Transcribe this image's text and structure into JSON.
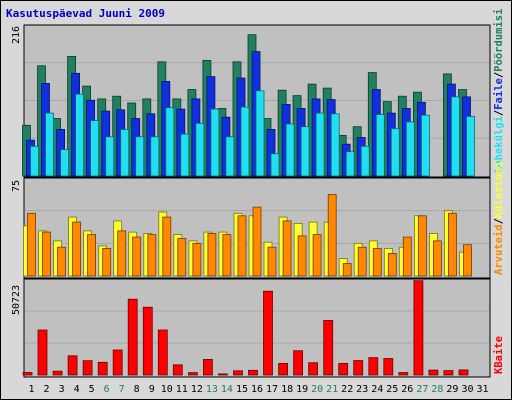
{
  "title": "Kasutuspäevad Juuni 2009",
  "colors": {
    "weekday_label": "#000000",
    "weekend_label": "#208060",
    "hits": "#208060",
    "files": "#1030e0",
    "pages": "#20e0f0",
    "visits": "#ff8800",
    "sites": "#ffff30",
    "kbytes": "#ff0000"
  },
  "chart_data": [
    {
      "type": "bar",
      "panel": "top",
      "ymax_label": "216",
      "ylim": [
        0,
        216
      ],
      "categories": [
        "1",
        "2",
        "3",
        "4",
        "5",
        "6",
        "7",
        "8",
        "9",
        "10",
        "11",
        "12",
        "13",
        "14",
        "15",
        "16",
        "17",
        "18",
        "19",
        "20",
        "21",
        "22",
        "23",
        "24",
        "25",
        "26",
        "27",
        "28",
        "29",
        "30",
        "31"
      ],
      "weekend_days": [
        6,
        7,
        13,
        14,
        20,
        21,
        27,
        28
      ],
      "legend": [
        {
          "label": "Pöördumisi",
          "color": "#208060"
        },
        {
          "label": "Faile",
          "color": "#1030e0"
        },
        {
          "label": "Lehekülgi",
          "color": "#20e0f0"
        }
      ],
      "series": [
        {
          "name": "Pöördumisi",
          "color": "#208060",
          "values": [
            75,
            163,
            85,
            177,
            133,
            114,
            118,
            108,
            114,
            169,
            114,
            128,
            171,
            100,
            169,
            209,
            85,
            127,
            119,
            136,
            130,
            60,
            73,
            153,
            110,
            118,
            124,
            0,
            151,
            128,
            0
          ]
        },
        {
          "name": "Faile",
          "color": "#1030e0",
          "values": [
            53,
            137,
            69,
            152,
            112,
            96,
            98,
            85,
            92,
            140,
            99,
            114,
            147,
            87,
            145,
            184,
            69,
            106,
            100,
            114,
            113,
            47,
            57,
            128,
            93,
            100,
            109,
            0,
            136,
            117,
            0
          ]
        },
        {
          "name": "Lehekülgi",
          "color": "#20e0f0",
          "values": [
            44,
            93,
            39,
            121,
            82,
            58,
            69,
            58,
            58,
            101,
            62,
            78,
            99,
            58,
            102,
            126,
            33,
            77,
            73,
            93,
            92,
            36,
            44,
            91,
            70,
            80,
            90,
            0,
            117,
            88,
            0
          ]
        }
      ]
    },
    {
      "type": "bar",
      "panel": "middle",
      "ymax_label": "75",
      "ylim": [
        0,
        75
      ],
      "categories": [
        "1",
        "2",
        "3",
        "4",
        "5",
        "6",
        "7",
        "8",
        "9",
        "10",
        "11",
        "12",
        "13",
        "14",
        "15",
        "16",
        "17",
        "18",
        "19",
        "20",
        "21",
        "22",
        "23",
        "24",
        "25",
        "26",
        "27",
        "28",
        "29",
        "30",
        "31"
      ],
      "legend": [
        {
          "label": "Külastusi",
          "color": "#ffff30"
        },
        {
          "label": "Arvuteid",
          "color": "#ff8800"
        }
      ],
      "series": [
        {
          "name": "Külastusi",
          "color": "#ffff30",
          "values": [
            40,
            36,
            28,
            47,
            36,
            24,
            44,
            35,
            34,
            51,
            33,
            28,
            35,
            35,
            50,
            48,
            27,
            47,
            42,
            43,
            43,
            14,
            26,
            28,
            22,
            23,
            48,
            34,
            52,
            19,
            0
          ]
        },
        {
          "name": "Arvuteid",
          "color": "#ff8800",
          "values": [
            50,
            35,
            23,
            43,
            33,
            22,
            36,
            31,
            33,
            47,
            30,
            26,
            34,
            33,
            48,
            55,
            23,
            44,
            32,
            33,
            65,
            10,
            23,
            22,
            18,
            31,
            48,
            28,
            50,
            25,
            0
          ]
        }
      ]
    },
    {
      "type": "bar",
      "panel": "bottom",
      "ymax_label": "50723",
      "ylim": [
        0,
        50723
      ],
      "categories": [
        "1",
        "2",
        "3",
        "4",
        "5",
        "6",
        "7",
        "8",
        "9",
        "10",
        "11",
        "12",
        "13",
        "14",
        "15",
        "16",
        "17",
        "18",
        "19",
        "20",
        "21",
        "22",
        "23",
        "24",
        "25",
        "26",
        "27",
        "28",
        "29",
        "30",
        "31"
      ],
      "legend": [
        {
          "label": "KBaite",
          "color": "#ff0000"
        }
      ],
      "series": [
        {
          "name": "KBaite",
          "color": "#ff0000",
          "values": [
            1400,
            24800,
            2100,
            10600,
            7900,
            7000,
            13800,
            41800,
            37400,
            24800,
            5600,
            1300,
            8600,
            600,
            2300,
            2600,
            46200,
            6400,
            13400,
            6800,
            30100,
            6400,
            8000,
            9600,
            9100,
            1400,
            52000,
            2700,
            2400,
            2800,
            0
          ]
        }
      ]
    }
  ]
}
